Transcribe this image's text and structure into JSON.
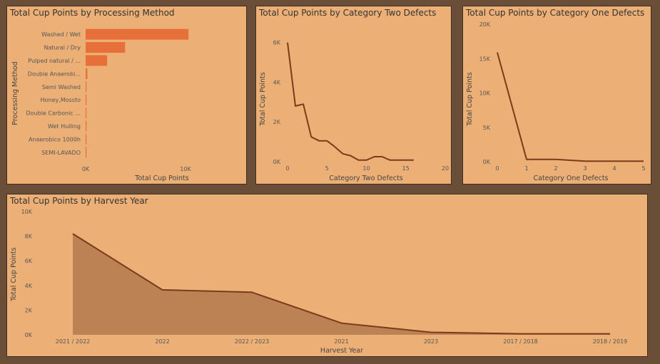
{
  "colors": {
    "background": "#6b4e38",
    "panel": "#ecb077",
    "bar": "#e66f3a",
    "line": "#7a3b1a",
    "area_fill": "#bd8253"
  },
  "chart_data": [
    {
      "id": "processing",
      "type": "bar",
      "orientation": "horizontal",
      "title": "Total Cup Points by Processing Method",
      "xlabel": "Total Cup Points",
      "ylabel": "Processing Method",
      "categories": [
        "Washed / Wet",
        "Natural / Dry",
        "Pulped natural / ...",
        "Double Anaerobi...",
        "Semi Washed",
        "Honey,Mossto",
        "Double Carbonic ...",
        "Wet Hulling",
        "Anaerobico 1000h",
        "SEMI-LAVADO"
      ],
      "values": [
        10300,
        3950,
        2150,
        170,
        85,
        85,
        85,
        85,
        85,
        85
      ],
      "xlim": [
        0,
        15000
      ],
      "xticks": [
        {
          "v": 0,
          "label": "0K"
        },
        {
          "v": 10000,
          "label": "10K"
        }
      ]
    },
    {
      "id": "cat2",
      "type": "line",
      "title": "Total Cup Points by Category Two Defects",
      "xlabel": "Category Two Defects",
      "ylabel": "Total Cup Points",
      "x": [
        0,
        1,
        2,
        3,
        4,
        5,
        6,
        7,
        8,
        9,
        10,
        11,
        12,
        13,
        14,
        15,
        16
      ],
      "y": [
        6000,
        2800,
        2900,
        1250,
        1050,
        1050,
        750,
        400,
        300,
        80,
        80,
        250,
        250,
        80,
        80,
        80,
        80
      ],
      "xlim": [
        0,
        20
      ],
      "ylim": [
        0,
        6600
      ],
      "xticks": [
        {
          "v": 0,
          "label": "0"
        },
        {
          "v": 5,
          "label": "5"
        },
        {
          "v": 10,
          "label": "10"
        },
        {
          "v": 15,
          "label": "15"
        },
        {
          "v": 20,
          "label": "20"
        }
      ],
      "yticks": [
        {
          "v": 0,
          "label": "0K"
        },
        {
          "v": 2000,
          "label": "2K"
        },
        {
          "v": 4000,
          "label": "4K"
        },
        {
          "v": 6000,
          "label": "6K"
        }
      ]
    },
    {
      "id": "cat1",
      "type": "line",
      "title": "Total Cup Points by Category One Defects",
      "xlabel": "Category One Defects",
      "ylabel": "Total Cup Points",
      "x": [
        0,
        1,
        2,
        3,
        4,
        5
      ],
      "y": [
        15900,
        330,
        330,
        80,
        80,
        80
      ],
      "xlim": [
        0,
        5
      ],
      "ylim": [
        0,
        20000
      ],
      "xticks": [
        {
          "v": 0,
          "label": "0"
        },
        {
          "v": 1,
          "label": "1"
        },
        {
          "v": 2,
          "label": "2"
        },
        {
          "v": 3,
          "label": "3"
        },
        {
          "v": 4,
          "label": "4"
        },
        {
          "v": 5,
          "label": "5"
        }
      ],
      "yticks": [
        {
          "v": 0,
          "label": "0K"
        },
        {
          "v": 5000,
          "label": "5K"
        },
        {
          "v": 10000,
          "label": "10K"
        },
        {
          "v": 15000,
          "label": "15K"
        },
        {
          "v": 20000,
          "label": "20K"
        }
      ]
    },
    {
      "id": "year",
      "type": "area",
      "title": "Total Cup Points by Harvest Year",
      "xlabel": "Harvest Year",
      "ylabel": "Total Cup Points",
      "categories": [
        "2021 / 2022",
        "2022",
        "2022 / 2023",
        "2021",
        "2023",
        "2017 / 2018",
        "2018 / 2019"
      ],
      "values": [
        8200,
        3650,
        3450,
        950,
        200,
        80,
        80
      ],
      "ylim": [
        0,
        10000
      ],
      "yticks": [
        {
          "v": 0,
          "label": "0K"
        },
        {
          "v": 2000,
          "label": "2K"
        },
        {
          "v": 4000,
          "label": "4K"
        },
        {
          "v": 6000,
          "label": "6K"
        },
        {
          "v": 8000,
          "label": "8K"
        },
        {
          "v": 10000,
          "label": "10K"
        }
      ]
    }
  ]
}
